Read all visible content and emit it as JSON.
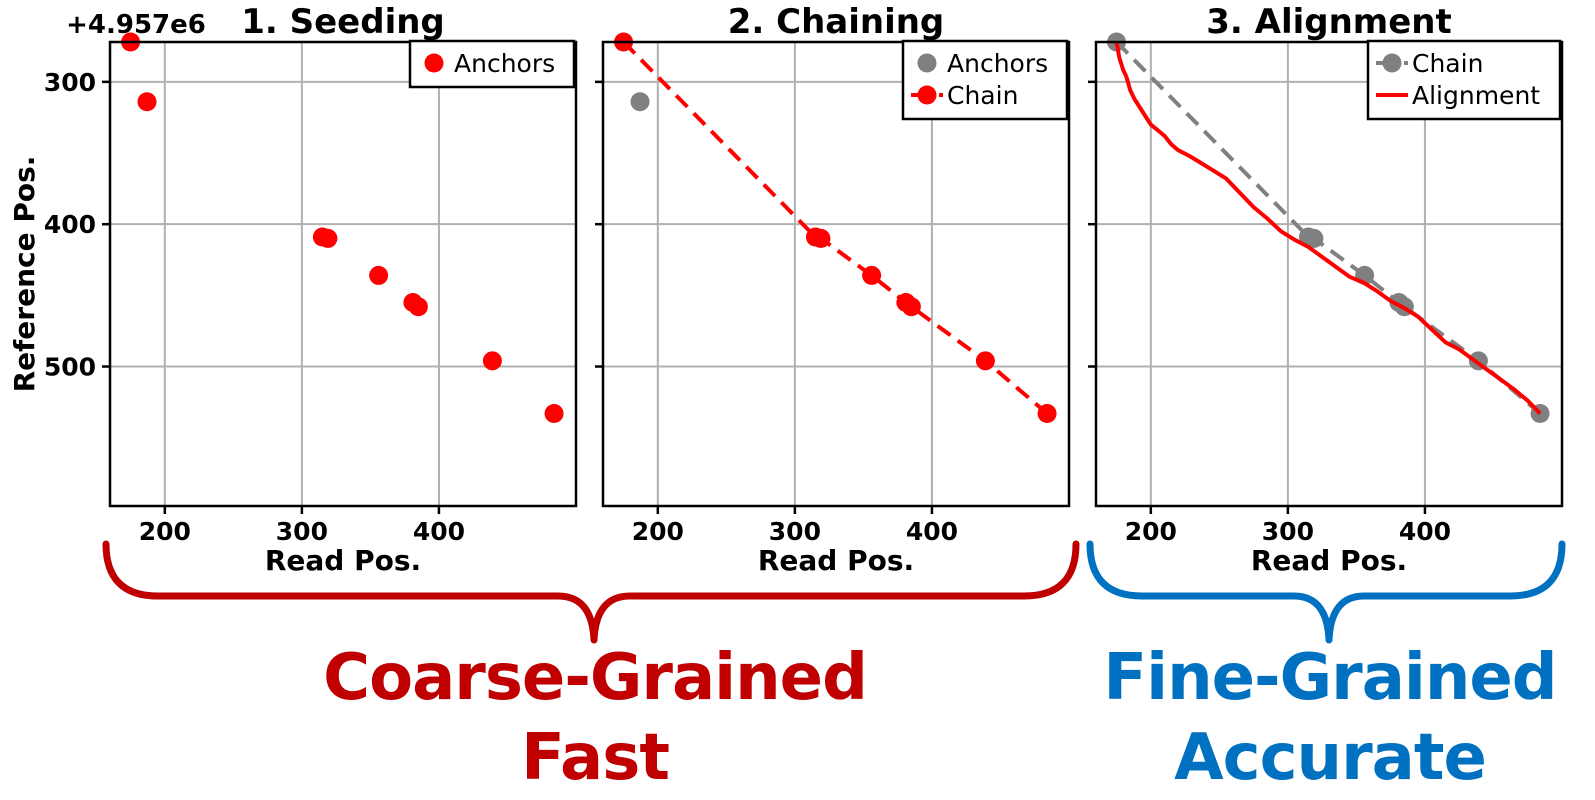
{
  "figure": {
    "offset_label": "+4.957e6",
    "ylabel": "Reference Pos.",
    "xlabel": "Read Pos.",
    "x_ticks": [
      200,
      300,
      400
    ],
    "y_ticks": [
      300,
      400,
      500
    ]
  },
  "colors": {
    "anchor_red": "#FF0000",
    "anchor_gray": "#808080",
    "coarse": "#C00000",
    "fine": "#0070C0",
    "grid": "#B0B0B0"
  },
  "chart_data": [
    {
      "type": "scatter",
      "title": "1. Seeding",
      "xlabel": "Read Pos.",
      "ylabel": "Reference Pos.",
      "y_offset": "+4.957e6",
      "xlim": [
        160,
        500
      ],
      "ylim": [
        598,
        272
      ],
      "y_inverted": true,
      "grid": true,
      "legend_position": "top-right",
      "series": [
        {
          "name": "Anchors",
          "color": "#FF0000",
          "style": "marker",
          "x": [
            175,
            187,
            315,
            319,
            356,
            381,
            385,
            439,
            484
          ],
          "y": [
            272,
            314,
            409,
            410,
            436,
            455,
            458,
            496,
            533
          ]
        }
      ]
    },
    {
      "type": "scatter",
      "title": "2. Chaining",
      "xlabel": "Read Pos.",
      "xlim": [
        160,
        500
      ],
      "ylim": [
        598,
        272
      ],
      "y_inverted": true,
      "grid": true,
      "legend_position": "top-right",
      "series": [
        {
          "name": "Anchors",
          "color": "#808080",
          "style": "marker",
          "x": [
            187
          ],
          "y": [
            314
          ]
        },
        {
          "name": "Chain",
          "color": "#FF0000",
          "style": "marker-dashed",
          "x": [
            175,
            315,
            319,
            356,
            381,
            385,
            439,
            484
          ],
          "y": [
            272,
            409,
            410,
            436,
            455,
            458,
            496,
            533
          ]
        }
      ]
    },
    {
      "type": "line",
      "title": "3. Alignment",
      "xlabel": "Read Pos.",
      "xlim": [
        160,
        500
      ],
      "ylim": [
        598,
        272
      ],
      "y_inverted": true,
      "grid": true,
      "legend_position": "top-right",
      "series": [
        {
          "name": "Chain",
          "color": "#808080",
          "style": "marker-dashed",
          "x": [
            175,
            315,
            319,
            356,
            381,
            385,
            439,
            484
          ],
          "y": [
            272,
            409,
            410,
            436,
            455,
            458,
            496,
            533
          ]
        },
        {
          "name": "Alignment",
          "color": "#FF0000",
          "style": "line",
          "x": [
            175,
            177,
            180,
            182,
            185,
            188,
            192,
            196,
            200,
            205,
            210,
            215,
            220,
            228,
            235,
            245,
            255,
            265,
            275,
            285,
            295,
            305,
            315,
            325,
            335,
            345,
            355,
            365,
            375,
            385,
            395,
            405,
            415,
            425,
            435,
            445,
            455,
            465,
            475,
            484
          ],
          "y": [
            272,
            283,
            292,
            296,
            306,
            312,
            318,
            324,
            330,
            334,
            338,
            344,
            348,
            352,
            356,
            362,
            368,
            378,
            388,
            396,
            405,
            411,
            416,
            423,
            430,
            437,
            441,
            447,
            454,
            459,
            465,
            474,
            483,
            488,
            495,
            502,
            509,
            516,
            524,
            533
          ]
        }
      ]
    }
  ],
  "captions": {
    "coarse_line1": "Coarse-Grained",
    "coarse_line2": "Fast",
    "fine_line1": "Fine-Grained",
    "fine_line2": "Accurate"
  }
}
